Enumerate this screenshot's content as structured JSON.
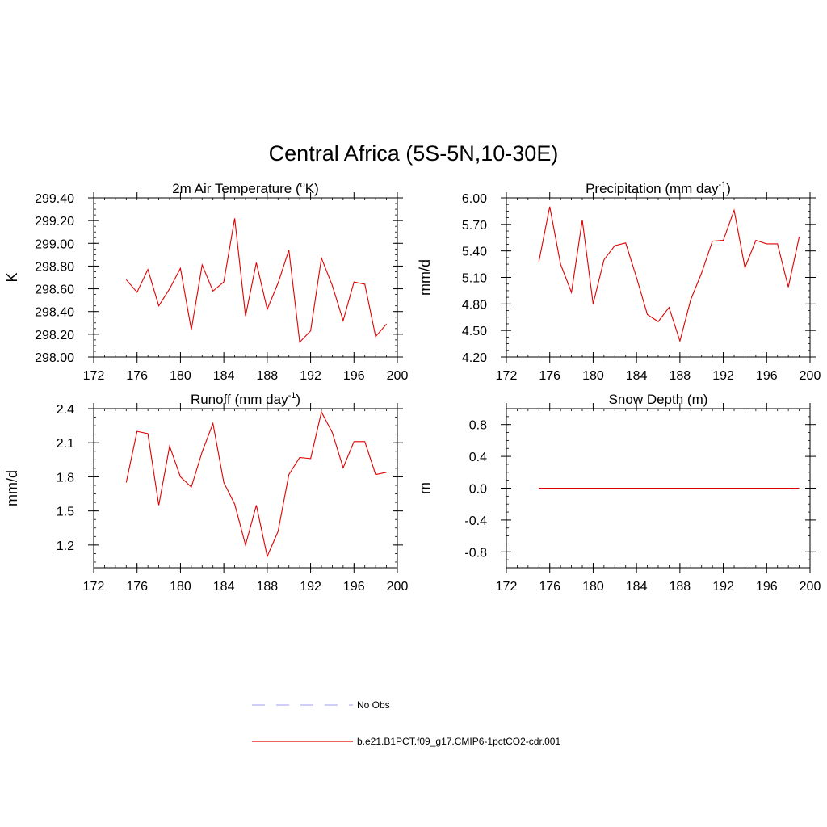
{
  "figure": {
    "title": "Central Africa (5S-5N,10-30E)",
    "legend": {
      "obs_label": "No Obs",
      "obs_color": "#b0b0f0",
      "model_label": "b.e21.B1PCT.f09_g17.CMIP6-1pctCO2-cdr.001",
      "model_color": "#e00000"
    }
  },
  "chart_data": [
    {
      "type": "line",
      "title_main": "2m Air Temperature (",
      "title_sup": "o",
      "title_tail": "K)",
      "ylabel": "K",
      "xlim": [
        172,
        200
      ],
      "ylim": [
        298.0,
        299.4
      ],
      "xticks": [
        172,
        176,
        180,
        184,
        188,
        192,
        196,
        200
      ],
      "yticks": [
        298.0,
        298.2,
        298.4,
        298.6,
        298.8,
        299.0,
        299.2,
        299.4
      ],
      "ytick_labels": [
        "298.00",
        "298.20",
        "298.40",
        "298.60",
        "298.80",
        "299.00",
        "299.20",
        "299.40"
      ],
      "series": [
        {
          "color": "#e00000",
          "x": [
            175,
            176,
            177,
            178,
            179,
            180,
            181,
            182,
            183,
            184,
            185,
            186,
            187,
            188,
            189,
            190,
            191,
            192,
            193,
            194,
            195,
            196,
            197,
            198,
            199
          ],
          "y": [
            298.68,
            298.57,
            298.77,
            298.45,
            298.6,
            298.78,
            298.24,
            298.81,
            298.58,
            298.66,
            299.22,
            298.36,
            298.83,
            298.42,
            298.65,
            298.94,
            298.13,
            298.23,
            298.87,
            298.63,
            298.32,
            298.66,
            298.64,
            298.18,
            298.29
          ]
        }
      ]
    },
    {
      "type": "line",
      "title_main": "Precipitation (mm day",
      "title_sup": "-1",
      "title_tail": ")",
      "ylabel": "mm/d",
      "xlim": [
        172,
        200
      ],
      "ylim": [
        4.2,
        6.0
      ],
      "xticks": [
        172,
        176,
        180,
        184,
        188,
        192,
        196,
        200
      ],
      "yticks": [
        4.2,
        4.5,
        4.8,
        5.1,
        5.4,
        5.7,
        6.0
      ],
      "ytick_labels": [
        "4.20",
        "4.50",
        "4.80",
        "5.10",
        "5.40",
        "5.70",
        "6.00"
      ],
      "series": [
        {
          "color": "#e00000",
          "x": [
            175,
            176,
            177,
            178,
            179,
            180,
            181,
            182,
            183,
            184,
            185,
            186,
            187,
            188,
            189,
            190,
            191,
            192,
            193,
            194,
            195,
            196,
            197,
            198,
            199
          ],
          "y": [
            5.28,
            5.9,
            5.25,
            4.93,
            5.75,
            4.8,
            5.3,
            5.46,
            5.49,
            5.1,
            4.68,
            4.6,
            4.76,
            4.38,
            4.85,
            5.15,
            5.51,
            5.52,
            5.86,
            5.21,
            5.52,
            5.48,
            5.48,
            4.99,
            5.56
          ]
        }
      ]
    },
    {
      "type": "line",
      "title_main": "Runoff (mm day",
      "title_sup": "-1",
      "title_tail": ")",
      "ylabel": "mm/d",
      "xlim": [
        172,
        200
      ],
      "ylim": [
        1.0,
        2.4
      ],
      "xticks": [
        172,
        176,
        180,
        184,
        188,
        192,
        196,
        200
      ],
      "yticks": [
        1.2,
        1.5,
        1.8,
        2.1,
        2.4
      ],
      "ytick_labels": [
        "1.2",
        "1.5",
        "1.8",
        "2.1",
        "2.4"
      ],
      "series": [
        {
          "color": "#e00000",
          "x": [
            175,
            176,
            177,
            178,
            179,
            180,
            181,
            182,
            183,
            184,
            185,
            186,
            187,
            188,
            189,
            190,
            191,
            192,
            193,
            194,
            195,
            196,
            197,
            198,
            199
          ],
          "y": [
            1.75,
            2.2,
            2.18,
            1.55,
            2.07,
            1.8,
            1.71,
            2.02,
            2.27,
            1.75,
            1.56,
            1.2,
            1.55,
            1.1,
            1.32,
            1.82,
            1.97,
            1.96,
            2.37,
            2.19,
            1.88,
            2.11,
            2.11,
            1.82,
            1.84
          ]
        }
      ]
    },
    {
      "type": "line",
      "title_main": "Snow Depth (m)",
      "title_sup": "",
      "title_tail": "",
      "ylabel": "m",
      "xlim": [
        172,
        200
      ],
      "ylim": [
        -1.0,
        1.0
      ],
      "xticks": [
        172,
        176,
        180,
        184,
        188,
        192,
        196,
        200
      ],
      "yticks": [
        -0.8,
        -0.4,
        0.0,
        0.4,
        0.8
      ],
      "ytick_labels": [
        "-0.8",
        "-0.4",
        "0.0",
        "0.4",
        "0.8"
      ],
      "series": [
        {
          "color": "#e00000",
          "x": [
            175,
            199
          ],
          "y": [
            0.0,
            0.0
          ]
        }
      ]
    }
  ]
}
